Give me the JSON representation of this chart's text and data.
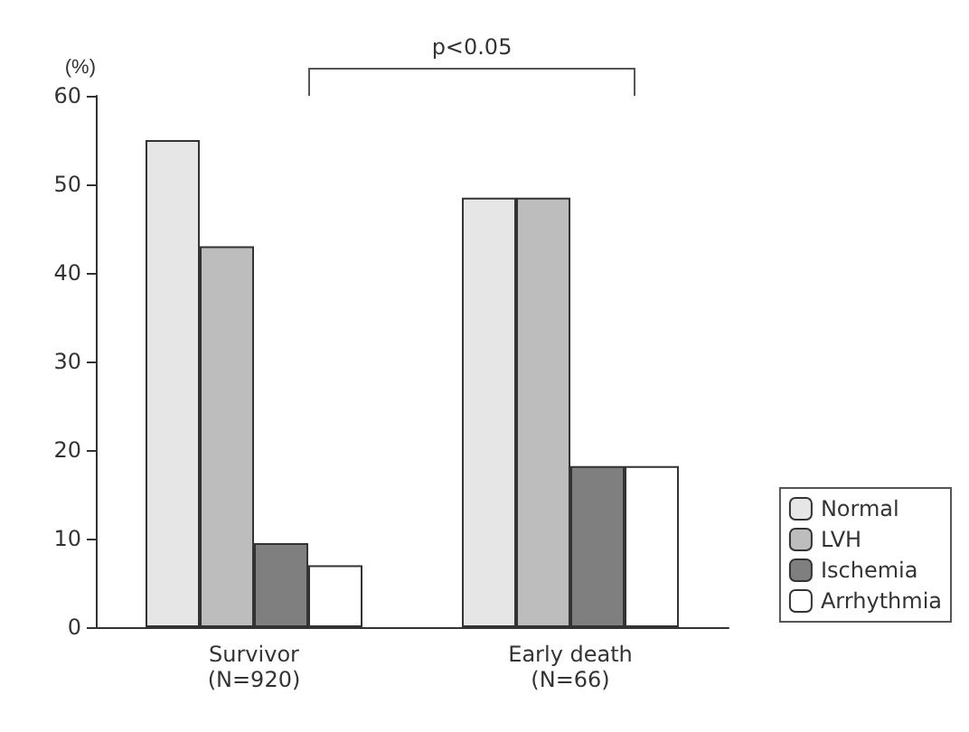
{
  "chart_data": {
    "type": "bar",
    "ylabel": "(%)",
    "categories": [
      "Survivor\n(N=920)",
      "Early death\n(N=66)"
    ],
    "series": [
      {
        "name": "Normal",
        "color": "#e6e6e6",
        "values": [
          55,
          48.5
        ]
      },
      {
        "name": "LVH",
        "color": "#bdbdbd",
        "values": [
          43,
          48.5
        ]
      },
      {
        "name": "Ischemia",
        "color": "#7f7f7f",
        "values": [
          9.5,
          18.2
        ]
      },
      {
        "name": "Arrhythmia",
        "color": "#ffffff",
        "values": [
          7,
          18.2
        ]
      }
    ],
    "ylim": [
      0,
      60
    ],
    "yticks": [
      0,
      10,
      20,
      30,
      40,
      50,
      60
    ],
    "grid": false,
    "legend": "right",
    "annotations": [
      "p<0.05"
    ]
  }
}
